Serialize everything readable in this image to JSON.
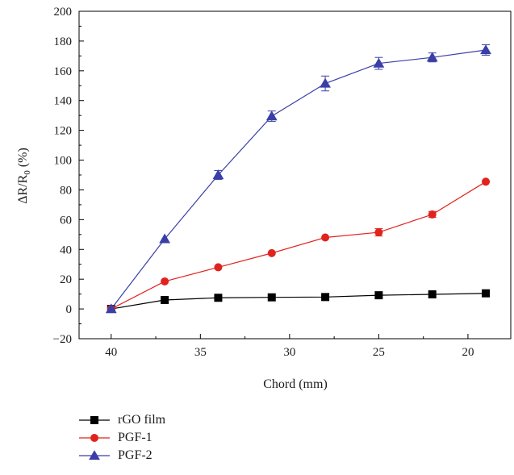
{
  "chart_data": {
    "type": "line",
    "xlabel": "Chord (mm)",
    "ylabel_main": "ΔR/R",
    "ylabel_sub": "0",
    "ylabel_unit": "(%)",
    "xlim": [
      41.8,
      17.6
    ],
    "ylim": [
      -20,
      200
    ],
    "x_reversed": true,
    "x_ticks": [
      40,
      35,
      30,
      25,
      20
    ],
    "y_ticks": [
      -20,
      0,
      20,
      40,
      60,
      80,
      100,
      120,
      140,
      160,
      180,
      200
    ],
    "x": [
      40,
      37,
      34,
      31,
      28,
      25,
      22,
      19
    ],
    "legend_position": "bottom-left, below plot",
    "grid": false,
    "series": [
      {
        "name": "rGO film",
        "color": "#000000",
        "marker": "square",
        "values": [
          0,
          6,
          7.5,
          7.8,
          8,
          9.2,
          9.8,
          10.5
        ],
        "errors": [
          0,
          0,
          0,
          0,
          0,
          0,
          0,
          0
        ]
      },
      {
        "name": "PGF-1",
        "color": "#e0231e",
        "marker": "circle",
        "values": [
          0,
          18.5,
          28,
          37.5,
          48,
          51.5,
          63.5,
          85.5
        ],
        "errors": [
          0,
          0,
          0,
          0,
          0,
          2.5,
          2,
          0
        ]
      },
      {
        "name": "PGF-2",
        "color": "#3a3fa8",
        "marker": "triangle",
        "values": [
          0,
          47,
          90,
          129.5,
          151.5,
          165,
          169,
          174
        ],
        "errors": [
          0,
          0,
          3,
          3.5,
          5,
          4,
          3,
          3.5
        ]
      }
    ]
  }
}
